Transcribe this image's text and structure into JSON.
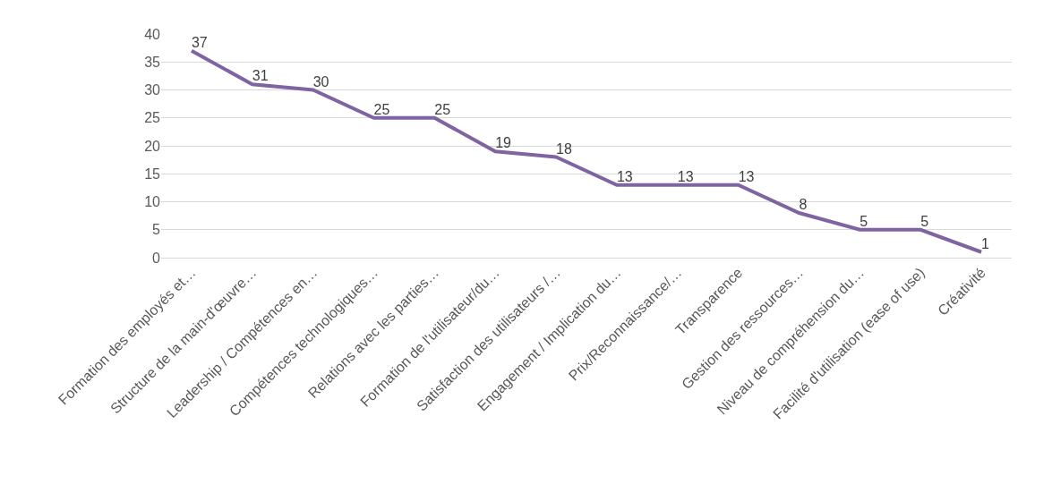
{
  "chart_data": {
    "type": "line",
    "categories": [
      "Formation des employés et…",
      "Structure de la main-d'œuvre…",
      "Leadership / Compétences en…",
      "Compétences technologiques…",
      "Relations avec les parties…",
      "Formation de l'utilisateur/du…",
      "Satisfaction des utilisateurs /…",
      "Engagement / Implication du…",
      "Prix/Reconnaissance/…",
      "Transparence",
      "Gestion des ressources…",
      "Niveau de compréhension du…",
      "Facilité d'utilisation (ease of use)",
      "Créativité"
    ],
    "series": [
      {
        "color": "#8064a2",
        "values": [
          37,
          31,
          30,
          25,
          25,
          19,
          18,
          13,
          13,
          13,
          8,
          5,
          5,
          1
        ]
      }
    ],
    "ylim": [
      0,
      40
    ],
    "yticks": [
      0,
      5,
      10,
      15,
      20,
      25,
      30,
      35,
      40
    ],
    "grid": "y",
    "marker": "none",
    "line_style": "solid",
    "data_labels": true
  }
}
